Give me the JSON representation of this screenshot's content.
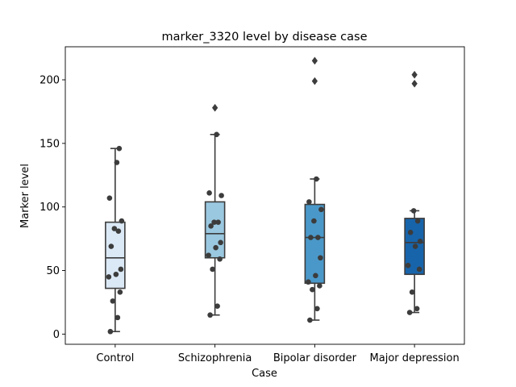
{
  "chart_data": {
    "type": "box",
    "title": "marker_3320 level by disease case",
    "xlabel": "Case",
    "ylabel": "Marker level",
    "ylim": [
      -8,
      226
    ],
    "yticks": [
      0,
      50,
      100,
      150,
      200
    ],
    "categories": [
      "Control",
      "Schizophrenia",
      "Bipolar disorder",
      "Major depression"
    ],
    "box_colors": [
      "#dbe9f6",
      "#9ac8e0",
      "#4a98c9",
      "#1764ab"
    ],
    "groups": [
      {
        "category": "Control",
        "whisker_low": 2,
        "q1": 36,
        "median": 60,
        "q3": 88,
        "whisker_high": 146,
        "outliers": [],
        "points": [
          2,
          13,
          26,
          33,
          45,
          47,
          51,
          69,
          81,
          83,
          89,
          107,
          135,
          146
        ]
      },
      {
        "category": "Schizophrenia",
        "whisker_low": 15,
        "q1": 60,
        "median": 79,
        "q3": 104,
        "whisker_high": 157,
        "outliers": [
          178
        ],
        "points": [
          15,
          22,
          51,
          59,
          62,
          68,
          72,
          85,
          88,
          88,
          109,
          111,
          157
        ]
      },
      {
        "category": "Bipolar disorder",
        "whisker_low": 11,
        "q1": 40,
        "median": 76,
        "q3": 102,
        "whisker_high": 122,
        "outliers": [
          199,
          215
        ],
        "points": [
          11,
          20,
          35,
          38,
          41,
          46,
          60,
          76,
          76,
          89,
          98,
          104,
          122
        ]
      },
      {
        "category": "Major depression",
        "whisker_low": 17,
        "q1": 47,
        "median": 72,
        "q3": 91,
        "whisker_high": 97,
        "outliers": [
          197,
          204
        ],
        "points": [
          17,
          20,
          33,
          51,
          54,
          69,
          73,
          80,
          89,
          97
        ]
      }
    ],
    "grid": false,
    "legend": "none"
  }
}
